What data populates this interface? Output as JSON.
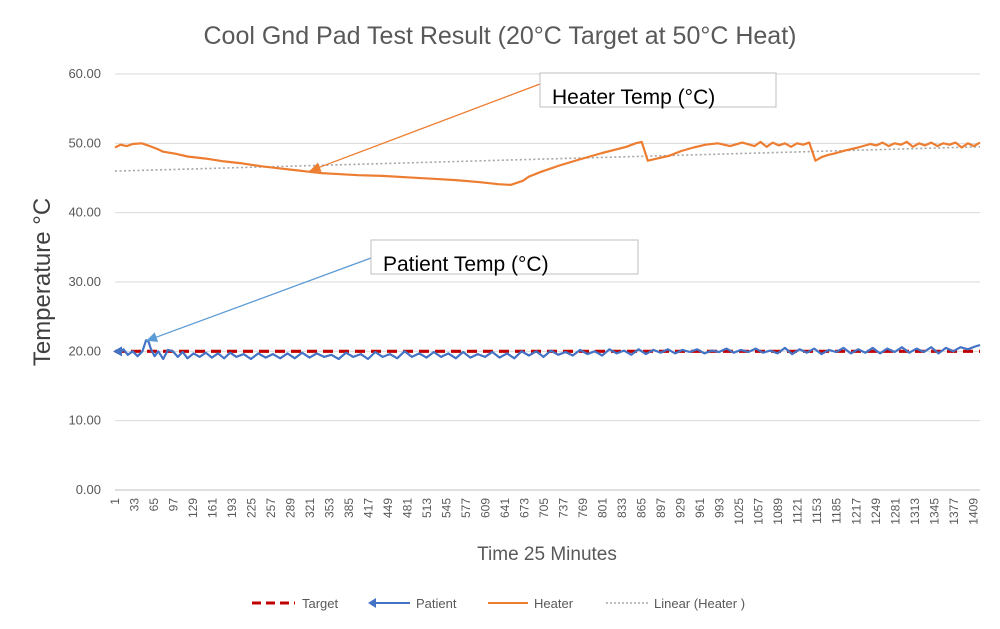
{
  "chart_data": {
    "type": "line",
    "title": "Cool Gnd Pad Test Result (20°C Target at 50°C Heat)",
    "xlabel": "Time 25 Minutes",
    "ylabel": "Temperature °C",
    "ylim": [
      0,
      60
    ],
    "yticks": [
      "0.00",
      "10.00",
      "20.00",
      "30.00",
      "40.00",
      "50.00",
      "60.00"
    ],
    "xlim": [
      1,
      1420
    ],
    "xticks": [
      "1",
      "33",
      "65",
      "97",
      "129",
      "161",
      "193",
      "225",
      "257",
      "289",
      "321",
      "353",
      "385",
      "417",
      "449",
      "481",
      "513",
      "545",
      "577",
      "609",
      "641",
      "673",
      "705",
      "737",
      "769",
      "801",
      "833",
      "865",
      "897",
      "929",
      "961",
      "993",
      "1025",
      "1057",
      "1089",
      "1121",
      "1153",
      "1185",
      "1217",
      "1249",
      "1281",
      "1313",
      "1345",
      "1377",
      "1409"
    ],
    "grid": "horizontal",
    "legend_position": "bottom",
    "series": [
      {
        "name": "Target",
        "color": "#c00000",
        "style": "dashed",
        "x": [
          1,
          1420
        ],
        "y": [
          20,
          20
        ]
      },
      {
        "name": "Patient",
        "color": "#4472c4",
        "style": "solid",
        "marker": "arrow",
        "x": [
          1,
          8,
          15,
          22,
          30,
          38,
          46,
          52,
          56,
          60,
          66,
          72,
          80,
          88,
          96,
          104,
          112,
          120,
          130,
          140,
          150,
          160,
          170,
          180,
          190,
          200,
          212,
          224,
          236,
          248,
          260,
          272,
          284,
          296,
          308,
          320,
          332,
          344,
          356,
          368,
          380,
          392,
          404,
          416,
          428,
          440,
          452,
          464,
          476,
          488,
          500,
          512,
          524,
          536,
          548,
          560,
          572,
          584,
          596,
          608,
          620,
          632,
          644,
          656,
          668,
          680,
          692,
          704,
          716,
          728,
          740,
          752,
          764,
          776,
          788,
          800,
          812,
          824,
          836,
          848,
          860,
          872,
          884,
          896,
          908,
          920,
          932,
          944,
          956,
          968,
          980,
          992,
          1004,
          1016,
          1028,
          1040,
          1052,
          1064,
          1076,
          1088,
          1100,
          1112,
          1124,
          1136,
          1148,
          1160,
          1172,
          1184,
          1196,
          1208,
          1220,
          1232,
          1244,
          1256,
          1268,
          1280,
          1292,
          1304,
          1316,
          1328,
          1340,
          1352,
          1364,
          1376,
          1388,
          1400,
          1412,
          1420
        ],
        "y": [
          20.0,
          19.7,
          20.3,
          19.5,
          20.0,
          19.3,
          20.0,
          21.6,
          21.4,
          20.3,
          19.3,
          20.0,
          18.9,
          20.2,
          20.0,
          19.2,
          19.9,
          19.0,
          19.7,
          19.2,
          19.8,
          19.1,
          19.7,
          19.0,
          19.8,
          19.2,
          19.6,
          18.9,
          19.7,
          19.1,
          19.6,
          19.0,
          19.7,
          19.0,
          19.8,
          19.1,
          19.7,
          19.2,
          19.5,
          18.9,
          19.8,
          19.2,
          19.6,
          18.9,
          19.9,
          19.2,
          19.6,
          19.0,
          20.0,
          19.2,
          19.7,
          19.1,
          19.9,
          19.2,
          19.7,
          19.0,
          19.9,
          19.1,
          19.6,
          19.2,
          19.9,
          19.1,
          19.7,
          19.0,
          20.0,
          19.4,
          20.0,
          19.2,
          20.1,
          19.5,
          19.9,
          19.4,
          20.2,
          19.6,
          20.0,
          19.4,
          20.3,
          19.7,
          20.1,
          19.5,
          20.3,
          19.6,
          20.2,
          19.8,
          20.3,
          19.7,
          20.2,
          19.9,
          20.3,
          19.7,
          20.1,
          19.9,
          20.4,
          19.8,
          20.2,
          19.9,
          20.4,
          19.8,
          20.1,
          19.7,
          20.5,
          19.6,
          20.3,
          19.8,
          20.4,
          19.6,
          20.2,
          19.9,
          20.5,
          19.7,
          20.3,
          19.8,
          20.5,
          19.7,
          20.4,
          19.9,
          20.6,
          19.8,
          20.4,
          19.9,
          20.6,
          19.7,
          20.5,
          20.0,
          20.6,
          20.3,
          20.7,
          20.9
        ]
      },
      {
        "name": "Heater",
        "color": "#ed7d31",
        "style": "solid",
        "x": [
          1,
          10,
          20,
          30,
          45,
          55,
          70,
          80,
          100,
          120,
          150,
          180,
          210,
          240,
          270,
          300,
          320,
          340,
          360,
          400,
          440,
          480,
          520,
          560,
          600,
          630,
          650,
          670,
          680,
          700,
          730,
          760,
          800,
          840,
          855,
          865,
          875,
          890,
          910,
          930,
          950,
          970,
          990,
          1010,
          1030,
          1050,
          1060,
          1070,
          1080,
          1090,
          1100,
          1110,
          1120,
          1130,
          1140,
          1150,
          1160,
          1170,
          1180,
          1200,
          1220,
          1240,
          1250,
          1260,
          1270,
          1280,
          1290,
          1300,
          1310,
          1320,
          1330,
          1340,
          1350,
          1360,
          1370,
          1380,
          1390,
          1400,
          1410,
          1420
        ],
        "y": [
          49.4,
          49.8,
          49.6,
          49.9,
          50.0,
          49.7,
          49.2,
          48.8,
          48.5,
          48.1,
          47.8,
          47.4,
          47.1,
          46.7,
          46.4,
          46.1,
          45.9,
          45.7,
          45.6,
          45.4,
          45.3,
          45.1,
          44.9,
          44.7,
          44.4,
          44.1,
          44.0,
          44.6,
          45.2,
          45.9,
          46.8,
          47.6,
          48.6,
          49.5,
          50.0,
          50.2,
          47.5,
          47.8,
          48.2,
          48.9,
          49.4,
          49.8,
          50.0,
          49.6,
          50.1,
          49.6,
          50.2,
          49.5,
          50.1,
          49.7,
          50.0,
          49.5,
          50.0,
          49.8,
          50.1,
          47.5,
          48.0,
          48.3,
          48.5,
          49.0,
          49.4,
          49.9,
          49.7,
          50.1,
          49.6,
          50.0,
          49.8,
          50.2,
          49.5,
          50.0,
          49.7,
          50.1,
          49.6,
          50.0,
          49.8,
          50.1,
          49.4,
          50.0,
          49.6,
          50.1
        ]
      },
      {
        "name": "Linear (Heater )",
        "color": "#a6a6a6",
        "style": "dotted",
        "x": [
          1,
          1420
        ],
        "y": [
          46.0,
          49.5
        ]
      }
    ],
    "annotations": [
      {
        "text": "Heater Temp (°C)",
        "points_to": {
          "x": 320,
          "y": 46.0
        }
      },
      {
        "text": "Patient Temp (°C)",
        "points_to": {
          "x": 52,
          "y": 21.5
        }
      }
    ]
  }
}
